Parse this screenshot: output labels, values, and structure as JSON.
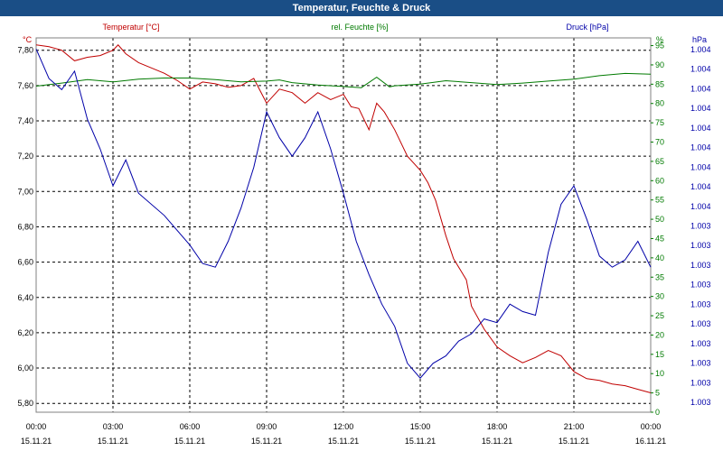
{
  "window": {
    "title": "Temperatur, Feuchte & Druck"
  },
  "chart_data": {
    "type": "line",
    "title": "Temperatur, Feuchte & Druck",
    "colors": {
      "temperature": "#c00000",
      "humidity": "#007a00",
      "pressure": "#0000a8",
      "grid": "#000000",
      "frame": "#808080"
    },
    "x_ticks": [
      {
        "time": "00:00",
        "date": "15.11.21"
      },
      {
        "time": "03:00",
        "date": "15.11.21"
      },
      {
        "time": "06:00",
        "date": "15.11.21"
      },
      {
        "time": "09:00",
        "date": "15.11.21"
      },
      {
        "time": "12:00",
        "date": "15.11.21"
      },
      {
        "time": "15:00",
        "date": "15.11.21"
      },
      {
        "time": "18:00",
        "date": "15.11.21"
      },
      {
        "time": "21:00",
        "date": "15.11.21"
      },
      {
        "time": "00:00",
        "date": "16.11.21"
      }
    ],
    "x_range_hours": [
      0,
      24
    ],
    "axes": {
      "temperature": {
        "label": "Temperatur [°C]",
        "unit": "°C",
        "ylim": [
          5.75,
          7.87
        ],
        "ticks": [
          "7,80",
          "7,60",
          "7,40",
          "7,20",
          "7,00",
          "6,80",
          "6,60",
          "6,40",
          "6,20",
          "6,00",
          "5,80"
        ],
        "tick_values": [
          7.8,
          7.6,
          7.4,
          7.2,
          7.0,
          6.8,
          6.6,
          6.4,
          6.2,
          6.0,
          5.8
        ]
      },
      "humidity": {
        "label": "rel. Feuchte [%]",
        "unit": "%",
        "ylim": [
          0,
          97
        ],
        "ticks": [
          "95",
          "90",
          "85",
          "80",
          "75",
          "70",
          "65",
          "60",
          "55",
          "50",
          "45",
          "40",
          "35",
          "30",
          "25",
          "20",
          "15",
          "10",
          "5",
          "0"
        ],
        "tick_values": [
          95,
          90,
          85,
          80,
          75,
          70,
          65,
          60,
          55,
          50,
          45,
          40,
          35,
          30,
          25,
          20,
          15,
          10,
          5,
          0
        ],
        "percent_label": "%"
      },
      "pressure": {
        "label": "Druck [hPa]",
        "unit": "hPa",
        "ticks": [
          "1.004",
          "1.004",
          "1.004",
          "1.004",
          "1.004",
          "1.004",
          "1.004",
          "1.004",
          "1.004",
          "1.003",
          "1.003",
          "1.003",
          "1.003",
          "1.003",
          "1.003",
          "1.003",
          "1.003",
          "1.003",
          "1.003"
        ]
      }
    },
    "series": [
      {
        "name": "Temperatur [°C]",
        "axis": "temperature",
        "points": [
          [
            0,
            7.83
          ],
          [
            0.5,
            7.82
          ],
          [
            1,
            7.8
          ],
          [
            1.5,
            7.74
          ],
          [
            2,
            7.76
          ],
          [
            2.5,
            7.77
          ],
          [
            3,
            7.8
          ],
          [
            3.2,
            7.83
          ],
          [
            3.5,
            7.78
          ],
          [
            4,
            7.73
          ],
          [
            4.5,
            7.7
          ],
          [
            5,
            7.67
          ],
          [
            5.5,
            7.63
          ],
          [
            6,
            7.58
          ],
          [
            6.5,
            7.62
          ],
          [
            7,
            7.61
          ],
          [
            7.5,
            7.59
          ],
          [
            8,
            7.6
          ],
          [
            8.5,
            7.64
          ],
          [
            9,
            7.5
          ],
          [
            9.5,
            7.58
          ],
          [
            10,
            7.56
          ],
          [
            10.5,
            7.5
          ],
          [
            11,
            7.56
          ],
          [
            11.5,
            7.52
          ],
          [
            12,
            7.55
          ],
          [
            12.3,
            7.48
          ],
          [
            12.6,
            7.47
          ],
          [
            13,
            7.35
          ],
          [
            13.3,
            7.5
          ],
          [
            13.6,
            7.45
          ],
          [
            14,
            7.35
          ],
          [
            14.5,
            7.2
          ],
          [
            15,
            7.12
          ],
          [
            15.3,
            7.05
          ],
          [
            15.6,
            6.95
          ],
          [
            16,
            6.75
          ],
          [
            16.3,
            6.62
          ],
          [
            16.8,
            6.5
          ],
          [
            17,
            6.35
          ],
          [
            17.5,
            6.22
          ],
          [
            18,
            6.12
          ],
          [
            18.5,
            6.07
          ],
          [
            19,
            6.03
          ],
          [
            19.5,
            6.06
          ],
          [
            20,
            6.1
          ],
          [
            20.5,
            6.07
          ],
          [
            21,
            5.98
          ],
          [
            21.5,
            5.94
          ],
          [
            22,
            5.93
          ],
          [
            22.5,
            5.91
          ],
          [
            23,
            5.9
          ],
          [
            23.5,
            5.88
          ],
          [
            24,
            5.86
          ]
        ]
      },
      {
        "name": "rel. Feuchte [%]",
        "axis": "humidity",
        "points": [
          [
            0,
            84.5
          ],
          [
            1,
            85.3
          ],
          [
            2,
            86.2
          ],
          [
            3,
            85.6
          ],
          [
            4,
            86.3
          ],
          [
            5,
            86.6
          ],
          [
            6,
            86.6
          ],
          [
            7,
            86.2
          ],
          [
            8,
            85.6
          ],
          [
            9,
            85.8
          ],
          [
            9.5,
            86.1
          ],
          [
            10,
            85.4
          ],
          [
            11,
            84.8
          ],
          [
            12,
            84.4
          ],
          [
            12.7,
            84.1
          ],
          [
            13.3,
            86.8
          ],
          [
            13.8,
            84.3
          ],
          [
            14,
            84.6
          ],
          [
            15,
            85.0
          ],
          [
            16,
            85.9
          ],
          [
            17,
            85.4
          ],
          [
            18,
            84.9
          ],
          [
            19,
            85.3
          ],
          [
            20,
            85.8
          ],
          [
            21,
            86.3
          ],
          [
            22,
            87.2
          ],
          [
            23,
            87.8
          ],
          [
            24,
            87.6
          ]
        ]
      },
      {
        "name": "Druck [hPa]",
        "axis": "pressure",
        "yscale_px_top": 42,
        "yscale_px_bottom": 452,
        "points": [
          [
            0,
            0.03
          ],
          [
            0.5,
            0.11
          ],
          [
            1,
            0.14
          ],
          [
            1.5,
            0.09
          ],
          [
            2,
            0.22
          ],
          [
            2.5,
            0.3
          ],
          [
            3,
            0.4
          ],
          [
            3.5,
            0.33
          ],
          [
            4,
            0.42
          ],
          [
            5,
            0.48
          ],
          [
            6,
            0.56
          ],
          [
            6.5,
            0.61
          ],
          [
            7,
            0.62
          ],
          [
            7.5,
            0.55
          ],
          [
            8,
            0.46
          ],
          [
            8.5,
            0.35
          ],
          [
            9,
            0.2
          ],
          [
            9.5,
            0.27
          ],
          [
            10,
            0.32
          ],
          [
            10.5,
            0.27
          ],
          [
            11,
            0.2
          ],
          [
            11.5,
            0.3
          ],
          [
            12,
            0.42
          ],
          [
            12.5,
            0.55
          ],
          [
            13,
            0.64
          ],
          [
            13.5,
            0.72
          ],
          [
            14,
            0.78
          ],
          [
            14.5,
            0.88
          ],
          [
            15,
            0.92
          ],
          [
            15.5,
            0.88
          ],
          [
            16,
            0.86
          ],
          [
            16.5,
            0.82
          ],
          [
            17,
            0.8
          ],
          [
            17.5,
            0.76
          ],
          [
            18,
            0.77
          ],
          [
            18.5,
            0.72
          ],
          [
            19,
            0.74
          ],
          [
            19.5,
            0.75
          ],
          [
            20,
            0.58
          ],
          [
            20.5,
            0.45
          ],
          [
            21,
            0.4
          ],
          [
            21.5,
            0.49
          ],
          [
            22,
            0.59
          ],
          [
            22.5,
            0.62
          ],
          [
            23,
            0.6
          ],
          [
            23.5,
            0.55
          ],
          [
            24,
            0.62
          ]
        ]
      }
    ]
  }
}
